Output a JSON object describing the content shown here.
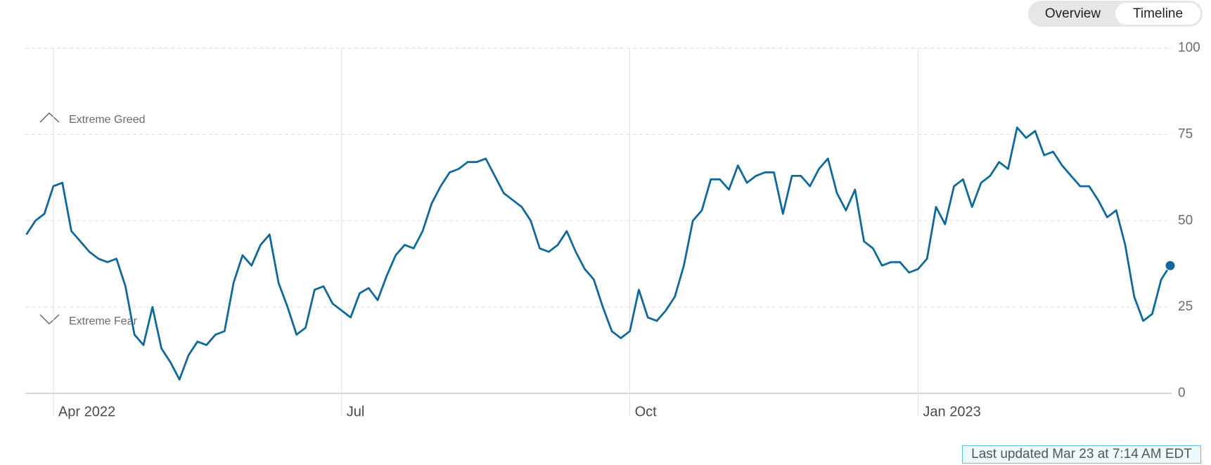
{
  "tabs": [
    "Overview",
    "Timeline"
  ],
  "footer": "Last updated Mar 23 at 7:14 AM EDT",
  "chart_data": {
    "type": "line",
    "annotations": [
      "Extreme Greed",
      "Extreme Fear"
    ],
    "categories": [
      null,
      null,
      null,
      "Apr 2022",
      null,
      null,
      null,
      null,
      null,
      null,
      null,
      null,
      null,
      null,
      null,
      null,
      null,
      null,
      null,
      null,
      null,
      null,
      null,
      null,
      null,
      null,
      null,
      null,
      null,
      null,
      null,
      null,
      null,
      null,
      null,
      "Jul",
      null,
      null,
      null,
      null,
      null,
      null,
      null,
      null,
      null,
      null,
      null,
      null,
      null,
      null,
      null,
      null,
      null,
      null,
      null,
      null,
      null,
      null,
      null,
      null,
      null,
      null,
      null,
      null,
      null,
      null,
      null,
      "Oct",
      null,
      null,
      null,
      null,
      null,
      null,
      null,
      null,
      null,
      null,
      null,
      null,
      null,
      null,
      null,
      null,
      null,
      null,
      null,
      null,
      null,
      null,
      null,
      null,
      null,
      null,
      null,
      null,
      null,
      null,
      null,
      "Jan 2023",
      null,
      null,
      null,
      null,
      null,
      null,
      null,
      null,
      null,
      null,
      null,
      null,
      null,
      null,
      null,
      null,
      null,
      null,
      null,
      null,
      null,
      null,
      null,
      null,
      null,
      null,
      null,
      null
    ],
    "series": [
      {
        "color": "#10699a",
        "values": [
          46,
          50,
          52,
          60,
          61,
          47,
          44,
          41,
          39,
          38,
          39,
          31,
          17,
          14,
          25,
          13,
          9,
          4,
          11,
          15,
          14,
          17,
          18,
          32,
          40,
          37,
          43,
          46,
          32,
          25,
          17,
          19,
          30,
          31,
          26,
          24,
          22,
          29,
          30.5,
          27,
          34,
          40,
          43,
          42,
          47,
          55,
          60,
          64,
          65,
          67,
          67,
          68,
          63,
          58,
          56,
          54,
          50,
          42,
          41,
          43,
          47,
          41,
          36,
          33,
          25,
          18,
          16,
          18,
          30,
          22,
          21,
          24,
          28,
          37,
          50,
          53,
          62,
          62,
          59,
          66,
          61,
          63,
          64,
          64,
          52,
          63,
          63,
          60,
          65,
          68,
          58,
          53,
          59,
          44,
          42,
          37,
          38,
          38,
          35,
          36,
          39,
          54,
          49,
          60,
          62,
          54,
          61,
          63,
          67,
          65,
          77,
          74,
          76,
          69,
          70,
          66,
          63,
          60,
          60,
          56,
          51,
          53,
          43,
          28,
          21,
          23,
          33,
          37
        ]
      }
    ],
    "ylim": [
      0,
      100
    ],
    "yticks": [
      0,
      25,
      50,
      75,
      100
    ],
    "grid": true
  }
}
